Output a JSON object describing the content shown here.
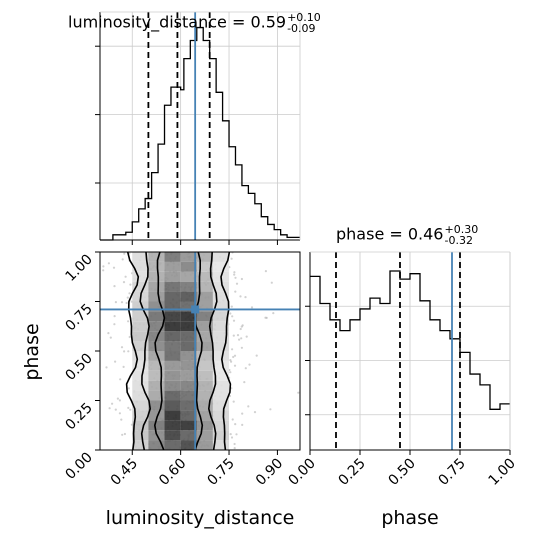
{
  "chart_data": {
    "type": "corner",
    "parameters": [
      {
        "name": "luminosity_distance",
        "label": "luminosity_distance",
        "median": 0.59,
        "plus": 0.1,
        "minus": 0.09,
        "title": "luminosity_distance = 0.59",
        "title_plus": "+0.10",
        "title_minus": "-0.09",
        "quantiles": [
          0.5,
          0.59,
          0.69
        ],
        "truth": 0.645,
        "xlim": [
          0.35,
          0.97
        ],
        "ticks": [
          0.45,
          0.6,
          0.75,
          0.9
        ],
        "tick_labels": [
          "0.45",
          "0.60",
          "0.75",
          "0.90"
        ],
        "hist_bins": [
          0.35,
          0.36,
          0.37,
          0.38,
          0.39,
          0.4,
          0.41,
          0.42,
          0.43,
          0.44,
          0.45,
          0.46,
          0.47,
          0.48,
          0.49,
          0.5,
          0.51,
          0.52,
          0.53,
          0.54,
          0.55,
          0.56,
          0.57,
          0.58,
          0.59,
          0.6,
          0.61,
          0.62,
          0.63,
          0.64,
          0.65,
          0.66,
          0.67,
          0.68,
          0.69,
          0.7,
          0.71,
          0.72,
          0.73,
          0.74,
          0.75,
          0.76,
          0.77,
          0.78,
          0.79,
          0.8,
          0.81,
          0.82,
          0.83,
          0.84,
          0.85,
          0.86,
          0.87,
          0.88,
          0.89,
          0.9,
          0.91,
          0.92,
          0.93,
          0.94,
          0.95,
          0.96,
          0.97
        ],
        "hist_values": [
          0,
          0,
          0,
          0,
          0.02,
          0.02,
          0.02,
          0.02,
          0.03,
          0.03,
          0.07,
          0.07,
          0.12,
          0.12,
          0.16,
          0.16,
          0.26,
          0.26,
          0.37,
          0.37,
          0.52,
          0.52,
          0.59,
          0.59,
          0.59,
          0.58,
          0.7,
          0.7,
          0.77,
          0.77,
          0.82,
          0.82,
          0.77,
          0.77,
          0.7,
          0.7,
          0.57,
          0.57,
          0.46,
          0.46,
          0.36,
          0.36,
          0.29,
          0.29,
          0.21,
          0.21,
          0.18,
          0.18,
          0.14,
          0.14,
          0.09,
          0.09,
          0.06,
          0.06,
          0.04,
          0.04,
          0.02,
          0.02,
          0.01,
          0.01,
          0.01,
          0.01
        ]
      },
      {
        "name": "phase",
        "label": "phase",
        "median": 0.46,
        "plus": 0.3,
        "minus": 0.32,
        "title": "phase = 0.46",
        "title_plus": "+0.30",
        "title_minus": "-0.32",
        "quantiles": [
          0.13,
          0.45,
          0.75
        ],
        "truth": 0.71,
        "xlim": [
          0.0,
          1.0
        ],
        "ticks": [
          0.0,
          0.25,
          0.5,
          0.75,
          1.0
        ],
        "tick_labels": [
          "0.00",
          "0.25",
          "0.50",
          "0.75",
          "1.00"
        ],
        "hist_bins": [
          0.0,
          0.05,
          0.1,
          0.15,
          0.2,
          0.25,
          0.3,
          0.35,
          0.4,
          0.45,
          0.5,
          0.55,
          0.6,
          0.65,
          0.7,
          0.75,
          0.8,
          0.85,
          0.9,
          0.95,
          1.0
        ],
        "hist_values": [
          0.86,
          0.76,
          0.7,
          0.66,
          0.7,
          0.74,
          0.78,
          0.76,
          0.88,
          0.85,
          0.87,
          0.77,
          0.7,
          0.66,
          0.63,
          0.58,
          0.5,
          0.46,
          0.37,
          0.39
        ]
      }
    ],
    "hist2d": {
      "x_param": "luminosity_distance",
      "y_param": "phase",
      "truth_point": [
        0.645,
        0.71
      ]
    },
    "ylabels": [
      "phase"
    ],
    "grid": true,
    "colors": {
      "truth": "#4682b4",
      "hist": "#000000",
      "grid": "#cccccc",
      "scatter": "#9a9a9a"
    }
  }
}
